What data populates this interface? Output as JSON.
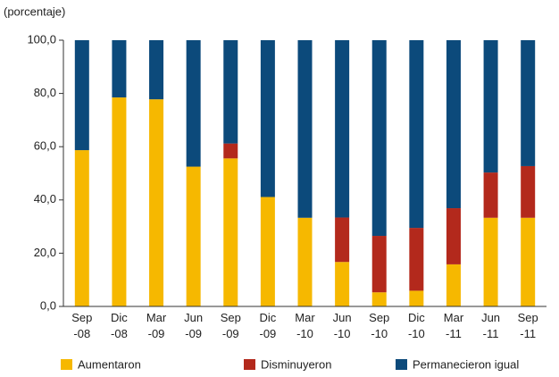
{
  "chart_data": {
    "type": "stacked_bar",
    "subtitle": "(porcentaje)",
    "categories": [
      "Sep -08",
      "Dic -08",
      "Mar -09",
      "Jun -09",
      "Sep -09",
      "Dic -09",
      "Mar -10",
      "Jun -10",
      "Sep -10",
      "Dic -10",
      "Mar -11",
      "Jun -11",
      "Sep -11"
    ],
    "series": [
      {
        "name": "Aumentaron",
        "color": "#f6b800",
        "values": [
          58.7,
          78.5,
          77.8,
          52.5,
          55.6,
          41.1,
          33.3,
          16.7,
          5.3,
          5.9,
          15.8,
          33.3,
          33.3
        ]
      },
      {
        "name": "Disminuyeron",
        "color": "#b3291c",
        "values": [
          0,
          0,
          0,
          0,
          5.6,
          0,
          0,
          16.7,
          21.2,
          23.6,
          21.1,
          17.0,
          19.4
        ]
      },
      {
        "name": "Permanecieron igual",
        "color": "#0c4a7b",
        "values": [
          41.3,
          21.5,
          22.2,
          47.5,
          38.8,
          58.9,
          66.7,
          66.6,
          73.5,
          70.5,
          63.1,
          49.7,
          47.3
        ]
      }
    ],
    "ylim": [
      0,
      100
    ],
    "yticks": [
      {
        "value": 0,
        "label": "0,0"
      },
      {
        "value": 20,
        "label": "20,0"
      },
      {
        "value": 40,
        "label": "40,0"
      },
      {
        "value": 60,
        "label": "60,0"
      },
      {
        "value": 80,
        "label": "80,0"
      },
      {
        "value": 100,
        "label": "100,0"
      }
    ],
    "legend": "bottom"
  }
}
